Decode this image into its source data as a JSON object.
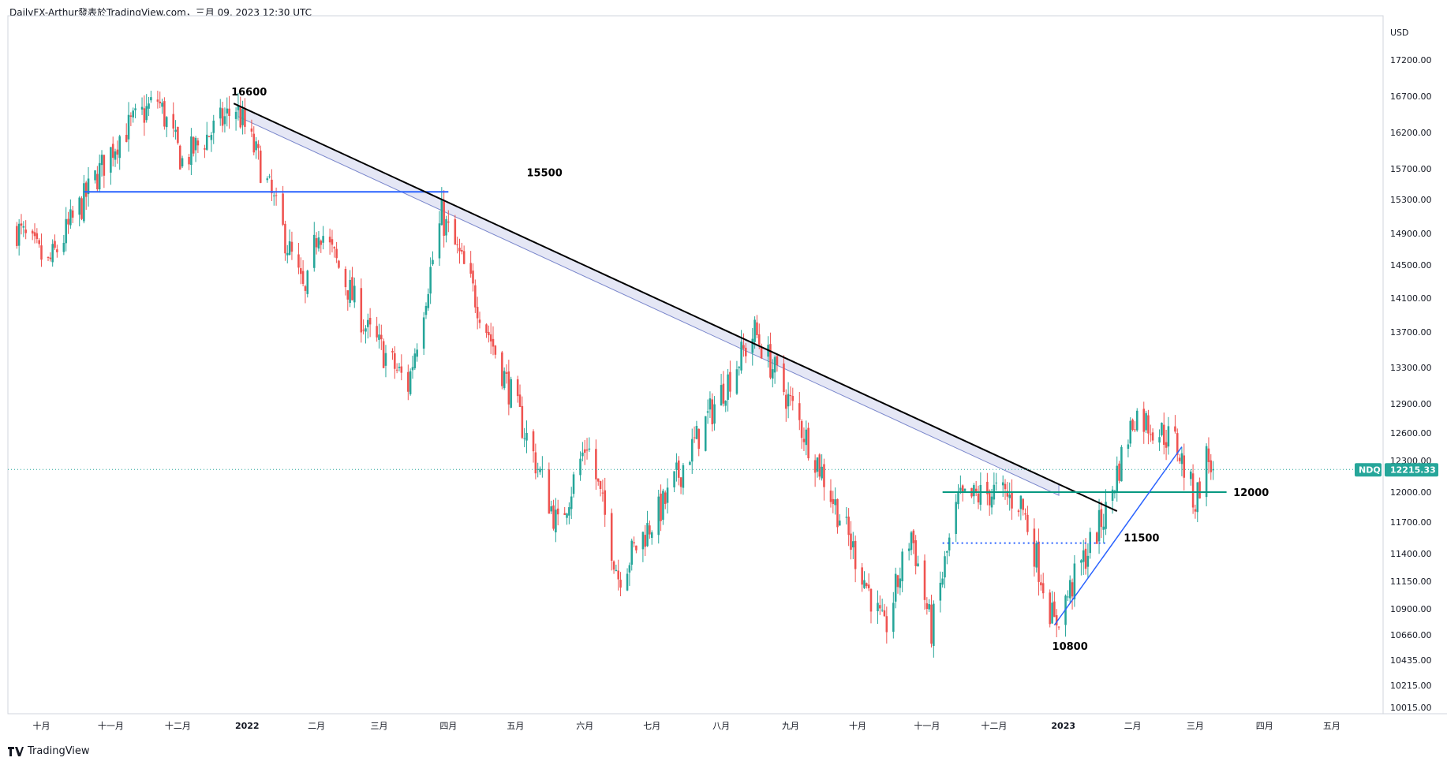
{
  "header": {
    "text": "DailyFX-Arthur發表於TradingView.com，三月 09, 2023 12:30 UTC"
  },
  "footer": {
    "brand": "TradingView",
    "logo_icon": "tradingview-logo-icon"
  },
  "colors": {
    "up": "#26a69a",
    "down": "#ef5350",
    "resistance": "#2962ff",
    "trendline": "#000000",
    "support_green": "#089981",
    "price_tag": "#26a69a",
    "channel_fill": "#c5cae9",
    "dotted_line": "#2962ff",
    "rising_trend": "#2962ff"
  },
  "chart_data": {
    "type": "candlestick",
    "symbol": "NDQ",
    "currency_label": "USD",
    "last_price": 12215.33,
    "last_price_label": "12215.33",
    "ylim": [
      10000,
      17550
    ],
    "y_ticks": [
      "17200.00",
      "16700.00",
      "16200.00",
      "15700.00",
      "15300.00",
      "14900.00",
      "14500.00",
      "14100.00",
      "13700.00",
      "13300.00",
      "12900.00",
      "12600.00",
      "12300.00",
      "12000.00",
      "11700.00",
      "11400.00",
      "11150.00",
      "10900.00",
      "10660.00",
      "10435.00",
      "10215.00",
      "10015.00"
    ],
    "x_labels": [
      {
        "label": "十月",
        "bold": false
      },
      {
        "label": "十一月",
        "bold": false
      },
      {
        "label": "十二月",
        "bold": false
      },
      {
        "label": "2022",
        "bold": true
      },
      {
        "label": "二月",
        "bold": false
      },
      {
        "label": "三月",
        "bold": false
      },
      {
        "label": "四月",
        "bold": false
      },
      {
        "label": "五月",
        "bold": false
      },
      {
        "label": "六月",
        "bold": false
      },
      {
        "label": "七月",
        "bold": false
      },
      {
        "label": "八月",
        "bold": false
      },
      {
        "label": "九月",
        "bold": false
      },
      {
        "label": "十月",
        "bold": false
      },
      {
        "label": "十一月",
        "bold": false
      },
      {
        "label": "十二月",
        "bold": false
      },
      {
        "label": "2023",
        "bold": true
      },
      {
        "label": "二月",
        "bold": false
      },
      {
        "label": "三月",
        "bold": false
      },
      {
        "label": "四月",
        "bold": false
      },
      {
        "label": "五月",
        "bold": false
      }
    ],
    "x_positions": [
      "2021-10",
      "2021-11",
      "2021-12",
      "2022-01",
      "2022-02",
      "2022-03",
      "2022-04",
      "2022-05",
      "2022-06",
      "2022-07",
      "2022-08",
      "2022-09",
      "2022-10",
      "2022-11",
      "2022-12",
      "2023-01",
      "2023-02",
      "2023-03",
      "2023-04",
      "2023-05"
    ],
    "key_points": [
      {
        "date": "2021-09-20",
        "close": 14950
      },
      {
        "date": "2021-10-04",
        "close": 14500
      },
      {
        "date": "2021-10-20",
        "close": 15300
      },
      {
        "date": "2021-11-05",
        "close": 16150
      },
      {
        "date": "2021-11-22",
        "close": 16650
      },
      {
        "date": "2021-12-03",
        "close": 15800
      },
      {
        "date": "2021-12-27",
        "close": 16550
      },
      {
        "date": "2022-01-05",
        "close": 15900
      },
      {
        "date": "2022-01-27",
        "close": 14100
      },
      {
        "date": "2022-02-02",
        "close": 15000
      },
      {
        "date": "2022-02-24",
        "close": 13700
      },
      {
        "date": "2022-03-14",
        "close": 13100
      },
      {
        "date": "2022-03-29",
        "close": 15100
      },
      {
        "date": "2022-04-06",
        "close": 14600
      },
      {
        "date": "2022-04-26",
        "close": 13200
      },
      {
        "date": "2022-05-20",
        "close": 11650
      },
      {
        "date": "2022-06-02",
        "close": 12500
      },
      {
        "date": "2022-06-16",
        "close": 11200
      },
      {
        "date": "2022-07-07",
        "close": 11900
      },
      {
        "date": "2022-08-16",
        "close": 13700
      },
      {
        "date": "2022-09-13",
        "close": 12300
      },
      {
        "date": "2022-10-13",
        "close": 10690
      },
      {
        "date": "2022-10-25",
        "close": 11600
      },
      {
        "date": "2022-11-03",
        "close": 10700
      },
      {
        "date": "2022-11-15",
        "close": 11900
      },
      {
        "date": "2022-12-01",
        "close": 12000
      },
      {
        "date": "2022-12-13",
        "close": 11900
      },
      {
        "date": "2022-12-28",
        "close": 10750
      },
      {
        "date": "2023-01-20",
        "close": 11800
      },
      {
        "date": "2023-02-02",
        "close": 12800
      },
      {
        "date": "2023-02-20",
        "close": 12500
      },
      {
        "date": "2023-03-01",
        "close": 11900
      },
      {
        "date": "2023-03-06",
        "close": 12350
      },
      {
        "date": "2023-03-09",
        "close": 12215
      }
    ],
    "annotations": {
      "label_16600": "16600",
      "label_15500": "15500",
      "label_12000": "12000",
      "label_11500": "11500",
      "label_10800": "10800"
    },
    "lines": {
      "resistance_15500": {
        "from": "2021-10-20",
        "to": "2022-04-01",
        "value": 15400
      },
      "trend_down": {
        "from": "2021-12-26",
        "to": "2023-01-25",
        "from_value": 16600,
        "to_value": 11810
      },
      "support_12000": {
        "from": "2022-11-08",
        "to": "2023-03-15",
        "value": 12000
      },
      "dotted_11500": {
        "from": "2022-11-08",
        "to": "2023-01-20",
        "value": 11500
      },
      "rising_trend": {
        "from": "2022-12-28",
        "to": "2023-02-23",
        "from_value": 10750,
        "to_value": 12450
      }
    },
    "grid": false,
    "legend": "none"
  }
}
